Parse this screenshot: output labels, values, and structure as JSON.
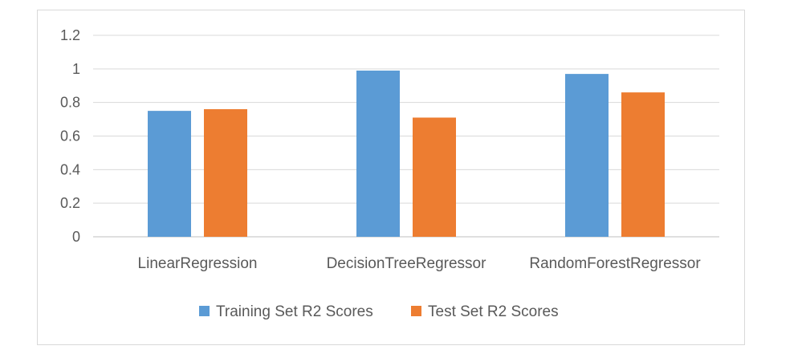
{
  "chart_data": {
    "type": "bar",
    "categories": [
      "LinearRegression",
      "DecisionTreeRegressor",
      "RandomForestRegressor"
    ],
    "series": [
      {
        "name": "Training Set R2 Scores",
        "values": [
          0.75,
          0.99,
          0.97
        ],
        "color": "#5B9BD5"
      },
      {
        "name": "Test Set R2 Scores",
        "values": [
          0.76,
          0.71,
          0.86
        ],
        "color": "#ED7D31"
      }
    ],
    "ylim": [
      0,
      1.2
    ],
    "yticks": [
      0,
      0.2,
      0.4,
      0.6,
      0.8,
      1,
      1.2
    ],
    "ytick_labels": [
      "0",
      "0.2",
      "0.4",
      "0.6",
      "0.8",
      "1",
      "1.2"
    ],
    "grid": true,
    "legend_position": "bottom",
    "title": "",
    "xlabel": "",
    "ylabel": ""
  }
}
